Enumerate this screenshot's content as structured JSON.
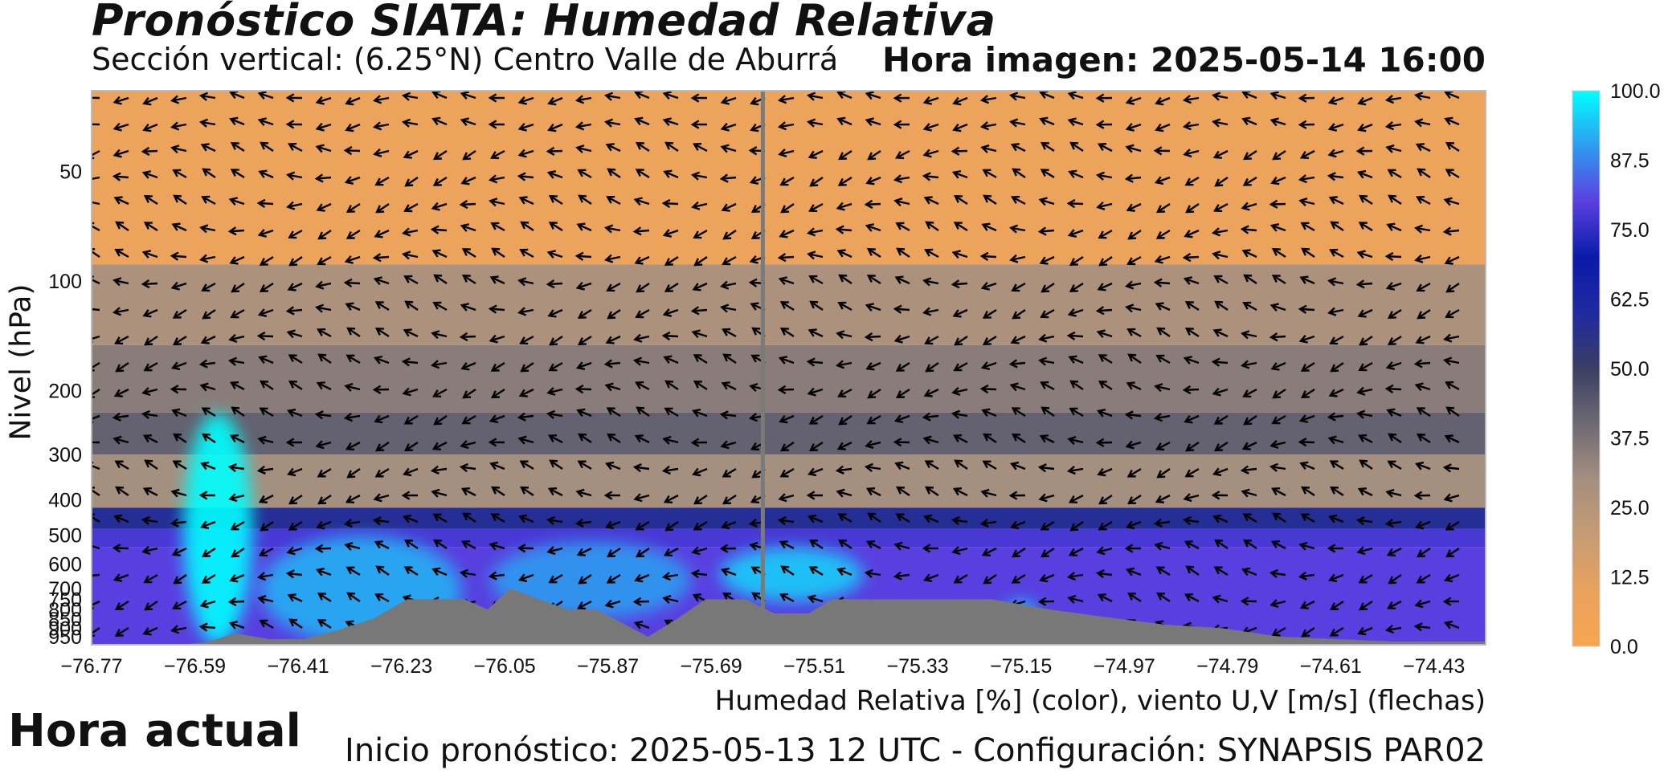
{
  "header": {
    "title": "Pronóstico SIATA: Humedad Relativa",
    "subtitle": "Sección vertical: (6.25°N) Centro Valle de Aburrá",
    "image_time": "Hora imagen: 2025-05-14 16:00"
  },
  "footer": {
    "caption": "Humedad Relativa [%] (color), viento U,V [m/s] (flechas)",
    "forecast_start": "Inicio pronóstico: 2025-05-13 12 UTC - Configuración: SYNAPSIS PAR02",
    "current_time_label": "Hora actual"
  },
  "chart_data": {
    "type": "heatmap",
    "title": "Pronóstico SIATA: Humedad Relativa",
    "ylabel": "Nivel (hPa)",
    "xlabel": "Humedad Relativa [%] (color), viento U,V [m/s] (flechas)",
    "x_ticks": [
      "−76.77",
      "−76.59",
      "−76.41",
      "−76.23",
      "−76.05",
      "−75.87",
      "−75.69",
      "−75.51",
      "−75.33",
      "−75.15",
      "−74.97",
      "−74.79",
      "−74.61",
      "−74.43"
    ],
    "y_ticks": [
      "50",
      "100",
      "200",
      "300",
      "400",
      "500",
      "600",
      "700",
      "750",
      "800",
      "850",
      "900",
      "950"
    ],
    "xlim": [
      -76.77,
      -74.34
    ],
    "ylim_hpa": [
      1000,
      30
    ],
    "current_time_lon": -75.6,
    "colorbar": {
      "min": 0,
      "max": 100,
      "ticks": [
        "0.0",
        "12.5",
        "25.0",
        "37.5",
        "50.0",
        "62.5",
        "75.0",
        "87.5",
        "100.0"
      ],
      "colors": [
        "#f7a64e",
        "#e9a25e",
        "#c69b75",
        "#a58f7f",
        "#6e6a73",
        "#3b3e63",
        "#202aa0",
        "#0a1aa8",
        "#5a3fe0",
        "#2f9bf0",
        "#00ffff"
      ]
    },
    "grid": false,
    "terrain_color": "#787878",
    "rh_bands": [
      {
        "p_top": 30,
        "p_bottom": 90,
        "rh": 8
      },
      {
        "p_top": 90,
        "p_bottom": 150,
        "rh": 28
      },
      {
        "p_top": 150,
        "p_bottom": 230,
        "rh": 35
      },
      {
        "p_top": 230,
        "p_bottom": 300,
        "rh": 42
      },
      {
        "p_top": 300,
        "p_bottom": 420,
        "rh": 30
      },
      {
        "p_top": 420,
        "p_bottom": 480,
        "rh": 58
      },
      {
        "p_top": 480,
        "p_bottom": 540,
        "rh": 78
      },
      {
        "p_top": 540,
        "p_bottom": 1000,
        "rh": 80
      }
    ],
    "moist_regions": [
      {
        "lon": -76.55,
        "p_top": 230,
        "p_bottom": 1000,
        "rh": 100,
        "width": 0.12
      },
      {
        "lon": -76.3,
        "p_top": 500,
        "p_bottom": 1000,
        "rh": 92,
        "width": 0.35
      },
      {
        "lon": -75.9,
        "p_top": 520,
        "p_bottom": 850,
        "rh": 90,
        "width": 0.35
      },
      {
        "lon": -75.55,
        "p_top": 540,
        "p_bottom": 760,
        "rh": 95,
        "width": 0.25
      },
      {
        "lon": -75.15,
        "p_top": 760,
        "p_bottom": 850,
        "rh": 95,
        "width": 0.06
      }
    ],
    "terrain_profile": [
      {
        "lon": -76.77,
        "p": 1000
      },
      {
        "lon": -76.62,
        "p": 1000
      },
      {
        "lon": -76.57,
        "p": 985
      },
      {
        "lon": -76.52,
        "p": 930
      },
      {
        "lon": -76.46,
        "p": 965
      },
      {
        "lon": -76.4,
        "p": 965
      },
      {
        "lon": -76.35,
        "p": 920
      },
      {
        "lon": -76.28,
        "p": 850
      },
      {
        "lon": -76.22,
        "p": 750
      },
      {
        "lon": -76.12,
        "p": 750
      },
      {
        "lon": -76.08,
        "p": 800
      },
      {
        "lon": -76.04,
        "p": 700
      },
      {
        "lon": -75.99,
        "p": 750
      },
      {
        "lon": -75.94,
        "p": 800
      },
      {
        "lon": -75.89,
        "p": 800
      },
      {
        "lon": -75.84,
        "p": 880
      },
      {
        "lon": -75.8,
        "p": 950
      },
      {
        "lon": -75.75,
        "p": 850
      },
      {
        "lon": -75.7,
        "p": 750
      },
      {
        "lon": -75.63,
        "p": 750
      },
      {
        "lon": -75.58,
        "p": 820
      },
      {
        "lon": -75.52,
        "p": 820
      },
      {
        "lon": -75.48,
        "p": 750
      },
      {
        "lon": -75.2,
        "p": 750
      },
      {
        "lon": -75.1,
        "p": 800
      },
      {
        "lon": -75.0,
        "p": 840
      },
      {
        "lon": -74.9,
        "p": 880
      },
      {
        "lon": -74.8,
        "p": 900
      },
      {
        "lon": -74.7,
        "p": 950
      },
      {
        "lon": -74.6,
        "p": 965
      },
      {
        "lon": -74.5,
        "p": 980
      },
      {
        "lon": -74.34,
        "p": 980
      }
    ]
  }
}
